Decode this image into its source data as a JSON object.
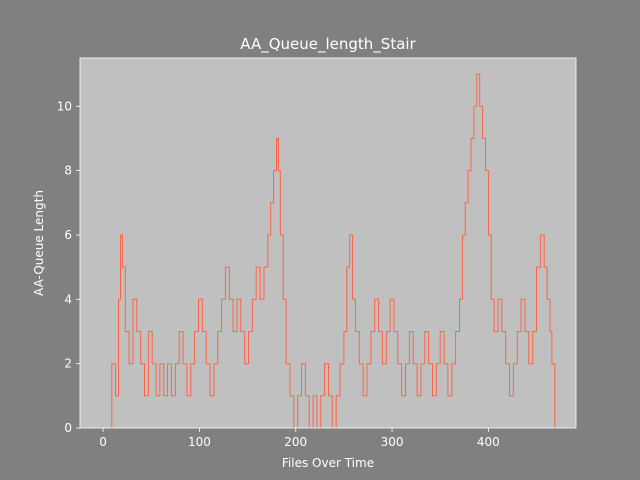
{
  "chart_data": {
    "type": "line",
    "title": "AA_Queue_length_Stair",
    "xlabel": "Files Over Time",
    "ylabel": "AA-Queue Length",
    "xlim": [
      -24,
      491
    ],
    "ylim": [
      0,
      11.5
    ],
    "xticks": [
      0,
      100,
      200,
      300,
      400
    ],
    "yticks": [
      0,
      2,
      4,
      6,
      8,
      10
    ],
    "grid": false,
    "legend": "none",
    "colors": {
      "background": "#808080",
      "plot_area": "#c0c0c0",
      "line": "#ff6347",
      "text": "#ffffff"
    },
    "series": [
      {
        "drawstyle": "steps",
        "x": [
          5,
          9,
          13,
          16,
          18,
          20,
          23,
          27,
          31,
          35,
          39,
          43,
          47,
          51,
          55,
          59,
          63,
          67,
          71,
          75,
          79,
          83,
          87,
          91,
          95,
          99,
          103,
          107,
          111,
          115,
          119,
          123,
          127,
          131,
          135,
          139,
          143,
          147,
          151,
          155,
          159,
          163,
          167,
          171,
          174,
          177,
          180,
          182,
          184,
          187,
          190,
          194,
          198,
          202,
          206,
          210,
          214,
          218,
          222,
          226,
          230,
          234,
          238,
          242,
          246,
          250,
          253,
          256,
          259,
          262,
          266,
          270,
          274,
          278,
          282,
          286,
          290,
          294,
          298,
          302,
          306,
          310,
          314,
          318,
          322,
          326,
          330,
          334,
          338,
          342,
          346,
          350,
          354,
          358,
          362,
          366,
          370,
          373,
          376,
          379,
          382,
          385,
          388,
          391,
          394,
          397,
          400,
          403,
          406,
          410,
          414,
          418,
          422,
          426,
          430,
          434,
          438,
          442,
          446,
          450,
          454,
          458,
          461,
          464,
          466,
          469
        ],
        "y": [
          0,
          2,
          1,
          4,
          6,
          5,
          3,
          2,
          4,
          3,
          2,
          1,
          3,
          2,
          1,
          2,
          1,
          2,
          1,
          2,
          3,
          2,
          1,
          2,
          3,
          4,
          3,
          2,
          1,
          2,
          3,
          4,
          5,
          4,
          3,
          4,
          3,
          2,
          3,
          4,
          5,
          4,
          5,
          6,
          7,
          8,
          9,
          8,
          6,
          4,
          2,
          1,
          0,
          1,
          2,
          1,
          0,
          1,
          0,
          1,
          2,
          1,
          0,
          1,
          2,
          3,
          5,
          6,
          4,
          3,
          2,
          1,
          2,
          3,
          4,
          3,
          2,
          3,
          4,
          3,
          2,
          1,
          2,
          3,
          2,
          1,
          2,
          3,
          2,
          1,
          2,
          3,
          2,
          1,
          2,
          3,
          4,
          6,
          7,
          8,
          9,
          10,
          11,
          10,
          9,
          8,
          6,
          4,
          3,
          4,
          3,
          2,
          1,
          2,
          3,
          4,
          3,
          2,
          3,
          5,
          6,
          5,
          4,
          3,
          2,
          0
        ]
      }
    ]
  }
}
